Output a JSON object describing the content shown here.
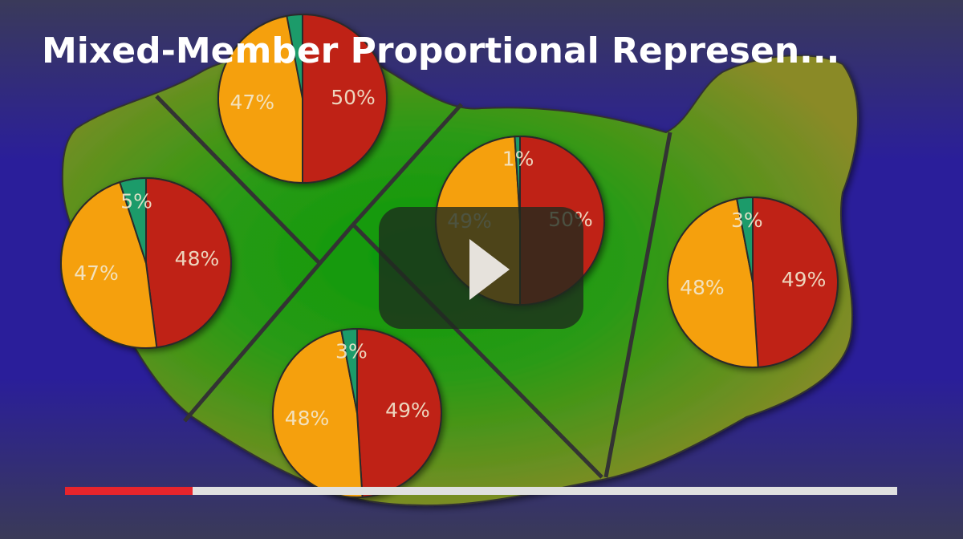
{
  "video": {
    "title": "Mixed-Member Proportional Represen...",
    "slice_colors": [
      "#bf2412",
      "#f5a00a",
      "#1a9b6a"
    ],
    "pies": [
      {
        "values": [
          50,
          47
        ],
        "value_labels": [
          "50%",
          "47%"
        ]
      },
      {
        "values": [
          48,
          47,
          5
        ],
        "value_labels": [
          "48%",
          "47%",
          "5%"
        ]
      },
      {
        "values": [
          50,
          49,
          1
        ],
        "value_labels": [
          "50%",
          "49%",
          "1%"
        ]
      },
      {
        "values": [
          49,
          48,
          3
        ],
        "value_labels": [
          "49%",
          "48%",
          "3%"
        ]
      },
      {
        "values": [
          49,
          48,
          3
        ],
        "value_labels": [
          "49%",
          "48%",
          "3%"
        ]
      }
    ]
  }
}
